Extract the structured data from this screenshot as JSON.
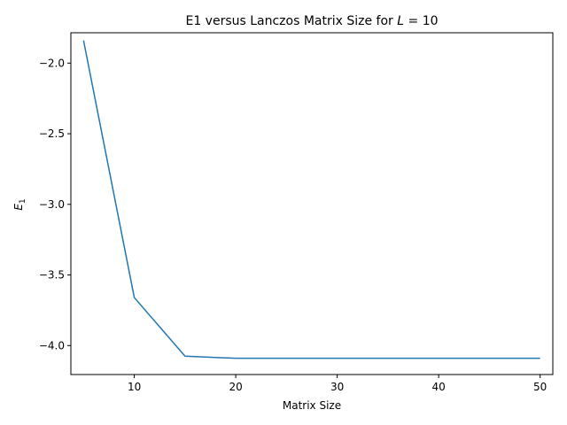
{
  "chart_data": {
    "type": "line",
    "title": "E1 versus Lanczos Matrix Size for L = 10",
    "title_parts": {
      "prefix": "E1 versus Lanczos Matrix Size for ",
      "var": "L",
      "suffix": " = 10"
    },
    "xlabel": "Matrix Size",
    "ylabel": "E",
    "ylabel_subscript": "1",
    "xlim": [
      3.75,
      51.25
    ],
    "ylim": [
      -4.205,
      -1.785
    ],
    "xticks": [
      10,
      20,
      30,
      40,
      50
    ],
    "yticks": [
      -2.0,
      -2.5,
      -3.0,
      -3.5,
      -4.0
    ],
    "xtick_labels": [
      "10",
      "20",
      "30",
      "40",
      "50"
    ],
    "ytick_labels": [
      "−2.0",
      "−2.5",
      "−3.0",
      "−3.5",
      "−4.0"
    ],
    "grid": false,
    "series": [
      {
        "color": "#1f77b4",
        "x": [
          5,
          10,
          15,
          20,
          25,
          30,
          35,
          40,
          45,
          50
        ],
        "y": [
          -1.84,
          -3.66,
          -4.075,
          -4.09,
          -4.09,
          -4.09,
          -4.09,
          -4.09,
          -4.09,
          -4.09
        ]
      }
    ]
  }
}
